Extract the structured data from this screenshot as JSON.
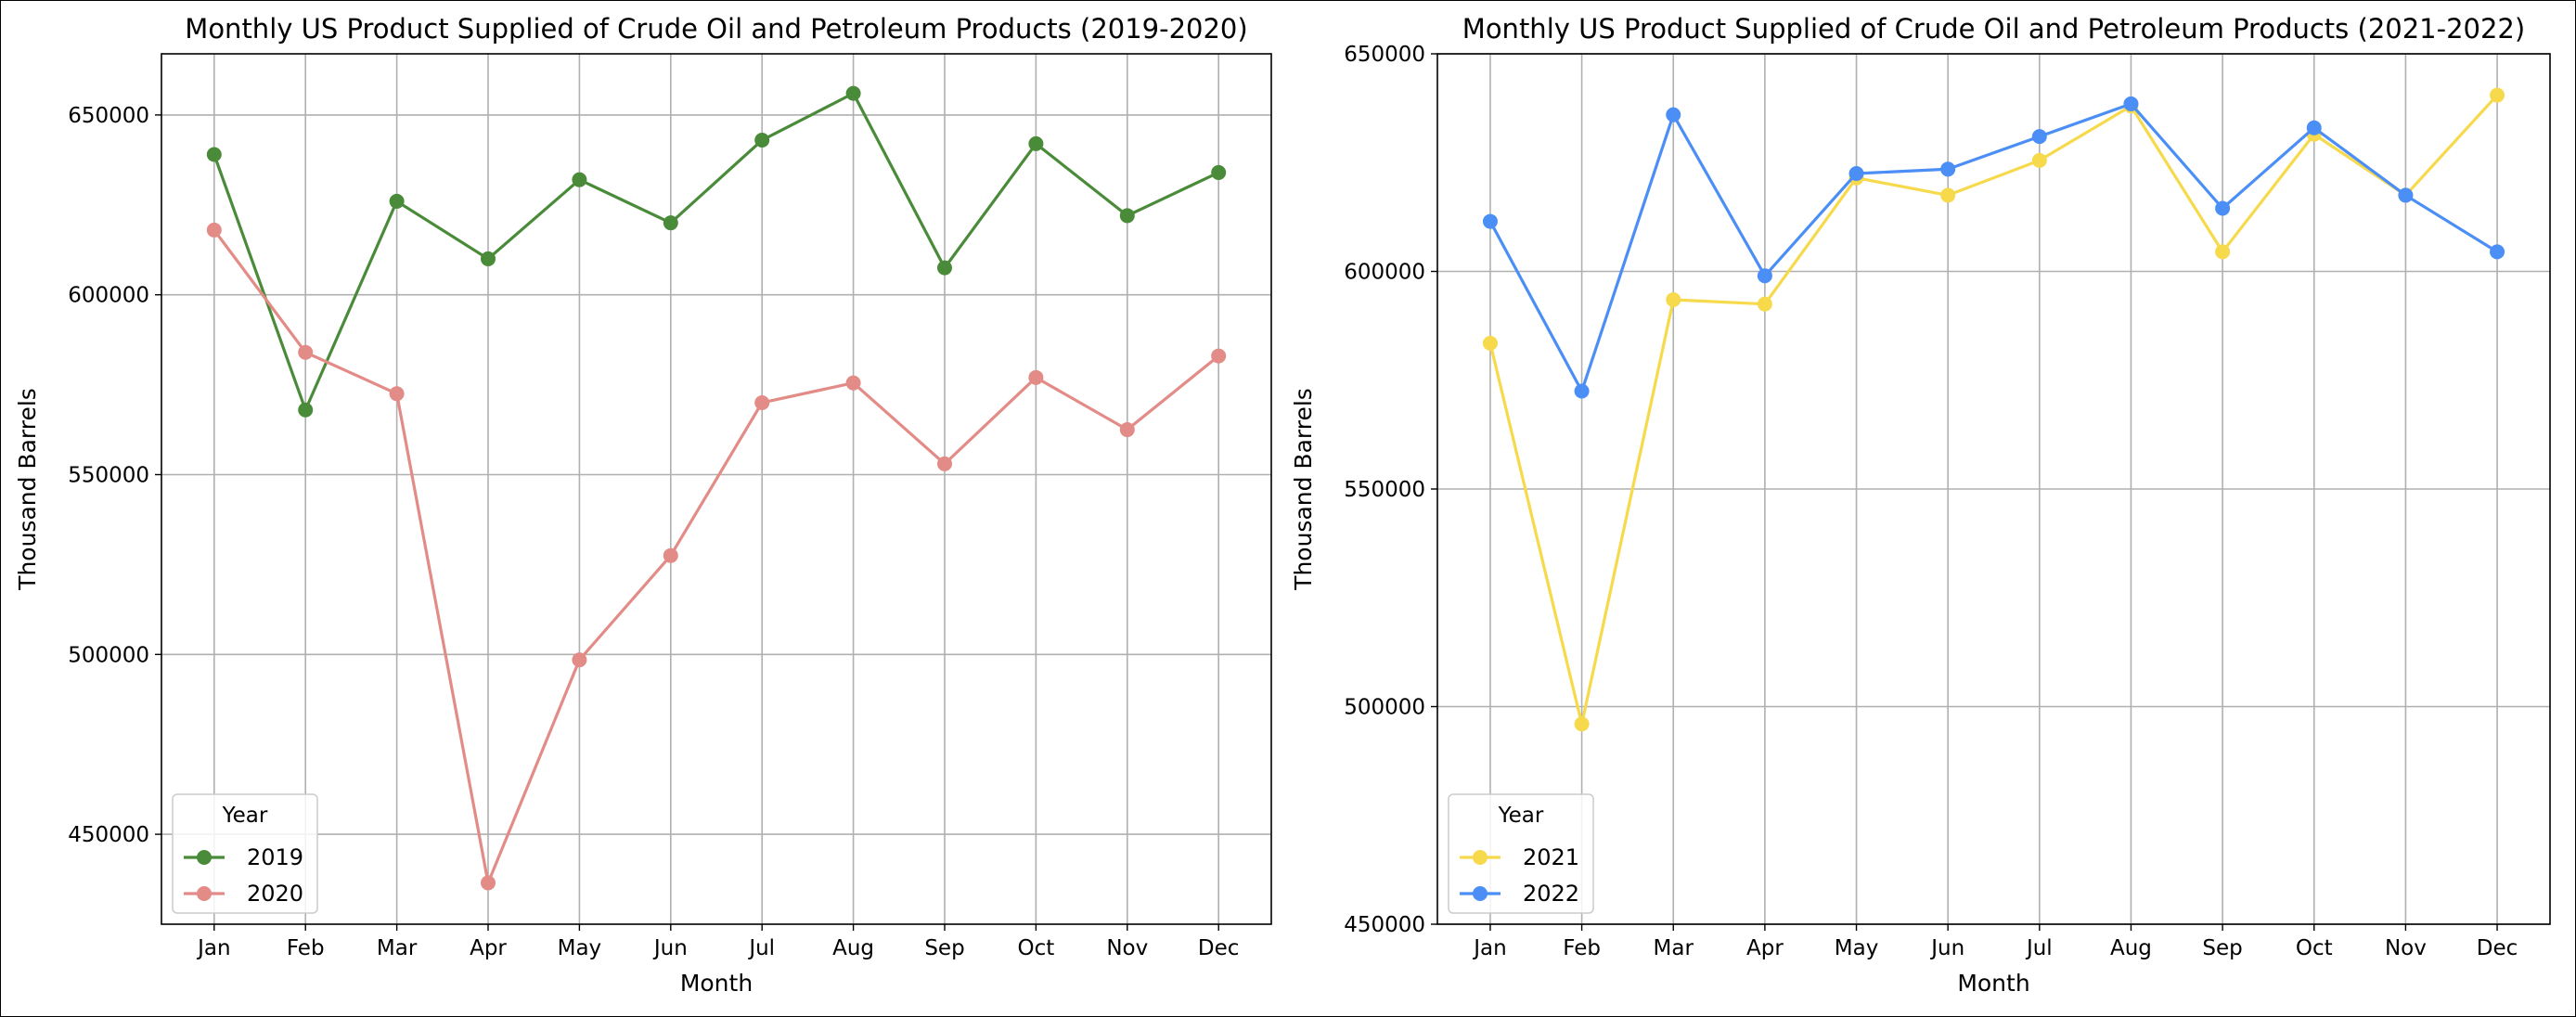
{
  "chart_data": [
    {
      "type": "line",
      "title": "Monthly US Product Supplied of Crude Oil and Petroleum Products (2019-2020)",
      "xlabel": "Month",
      "ylabel": "Thousand Barrels",
      "categories": [
        "Jan",
        "Feb",
        "Mar",
        "Apr",
        "May",
        "Jun",
        "Jul",
        "Aug",
        "Sep",
        "Oct",
        "Nov",
        "Dec"
      ],
      "ylim": [
        425000,
        667000
      ],
      "yticks": [
        450000,
        500000,
        550000,
        600000,
        650000
      ],
      "ytick_labels": [
        "450000",
        "500000",
        "550000",
        "600000",
        "650000"
      ],
      "grid": true,
      "legend": {
        "title": "Year",
        "placement": "lower-left"
      },
      "series": [
        {
          "name": "2019",
          "color": "#4a8b3a",
          "values": [
            639000,
            568000,
            626000,
            610000,
            632000,
            620000,
            643000,
            656000,
            607500,
            642000,
            622000,
            634000
          ]
        },
        {
          "name": "2020",
          "color": "#e38b86",
          "values": [
            618000,
            584000,
            572500,
            436500,
            498500,
            527500,
            570000,
            575500,
            553000,
            577000,
            562500,
            583000
          ]
        }
      ]
    },
    {
      "type": "line",
      "title": "Monthly US Product Supplied of Crude Oil and Petroleum Products (2021-2022)",
      "xlabel": "Month",
      "ylabel": "Thousand Barrels",
      "categories": [
        "Jan",
        "Feb",
        "Mar",
        "Apr",
        "May",
        "Jun",
        "Jul",
        "Aug",
        "Sep",
        "Oct",
        "Nov",
        "Dec"
      ],
      "ylim": [
        450000,
        650000
      ],
      "yticks": [
        450000,
        500000,
        550000,
        600000,
        650000
      ],
      "ytick_labels": [
        "450000",
        "500000",
        "550000",
        "600000",
        "650000"
      ],
      "grid": true,
      "legend": {
        "title": "Year",
        "placement": "lower-left"
      },
      "series": [
        {
          "name": "2021",
          "color": "#f7d94c",
          "values": [
            583500,
            496000,
            593500,
            592500,
            621500,
            617500,
            625500,
            638000,
            604500,
            631500,
            617500,
            640500
          ]
        },
        {
          "name": "2022",
          "color": "#4b8ef5",
          "values": [
            611500,
            572500,
            636000,
            599000,
            622500,
            623500,
            631000,
            638500,
            614500,
            633000,
            617500,
            604500
          ]
        }
      ]
    }
  ]
}
